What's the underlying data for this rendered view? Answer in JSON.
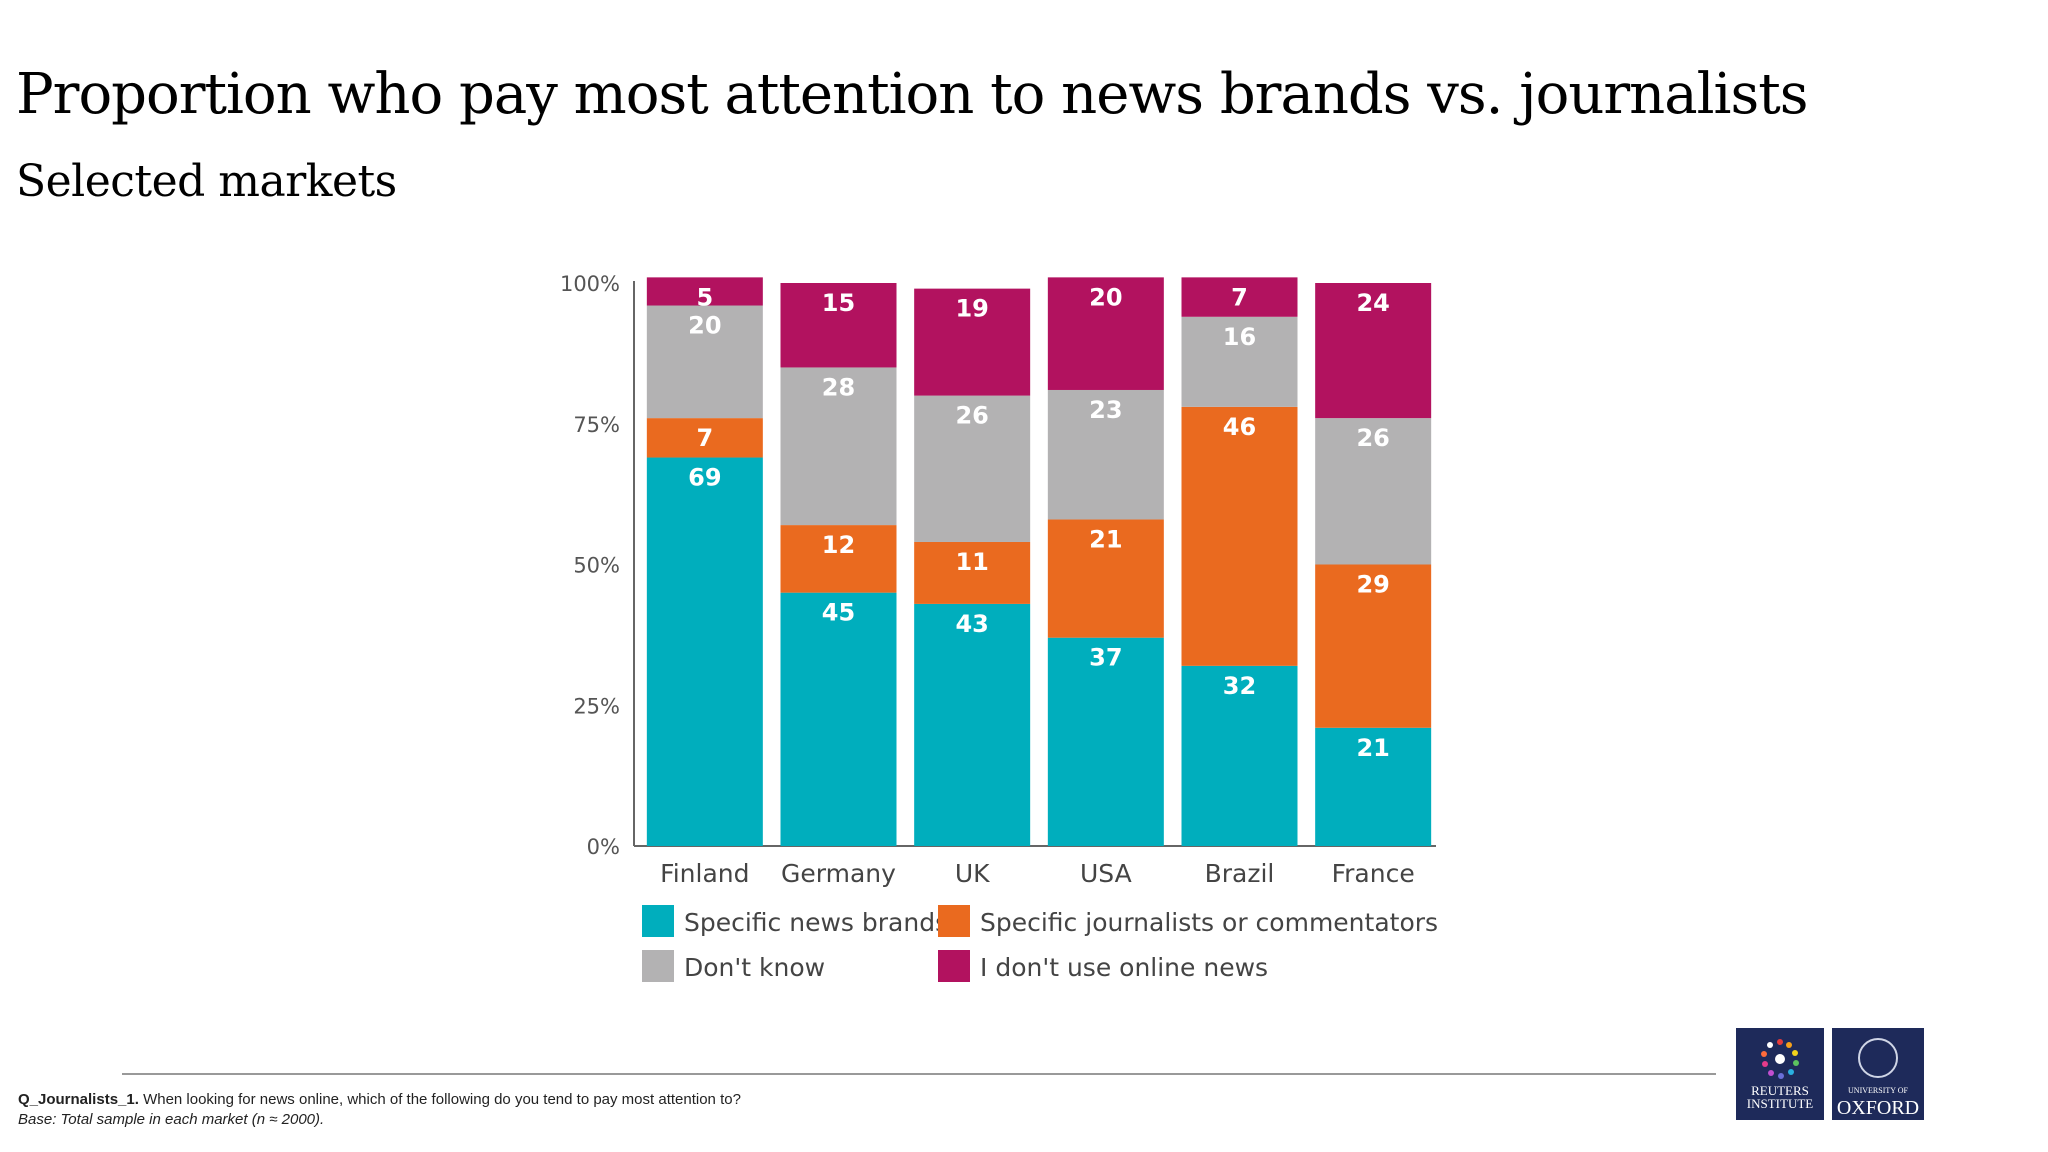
{
  "slide": {
    "title": "Proportion who pay most attention to news brands vs. journalists",
    "subtitle": "Selected markets"
  },
  "chart_data": {
    "type": "bar",
    "stacked": true,
    "categories": [
      "Finland",
      "Germany",
      "UK",
      "USA",
      "Brazil",
      "France"
    ],
    "series": [
      {
        "name": "Specific news brands",
        "color": "#00aebd",
        "values": [
          69,
          45,
          43,
          37,
          32,
          21
        ]
      },
      {
        "name": "Specific journalists or commentators",
        "color": "#ea6a1f",
        "values": [
          7,
          12,
          11,
          21,
          46,
          29
        ]
      },
      {
        "name": "Don't know",
        "color": "#b3b2b3",
        "values": [
          20,
          28,
          26,
          23,
          16,
          26
        ]
      },
      {
        "name": "I don't use online news",
        "color": "#b2125f",
        "values": [
          5,
          15,
          19,
          20,
          7,
          24
        ]
      }
    ],
    "yticks": [
      "0%",
      "25%",
      "50%",
      "75%",
      "100%"
    ],
    "ylim": [
      0,
      100
    ],
    "legend_position": "bottom",
    "grid": false
  },
  "footer": {
    "question_id": "Q_Journalists_1.",
    "question_text": "When looking for news online, which of the following do you tend to pay most attention to?",
    "base": "Base: Total sample in each market (n ≈ 2000)."
  },
  "logos": {
    "reuters_line1": "REUTERS",
    "reuters_line2": "INSTITUTE",
    "oxford_line1": "UNIVERSITY OF",
    "oxford_line2": "OXFORD"
  }
}
